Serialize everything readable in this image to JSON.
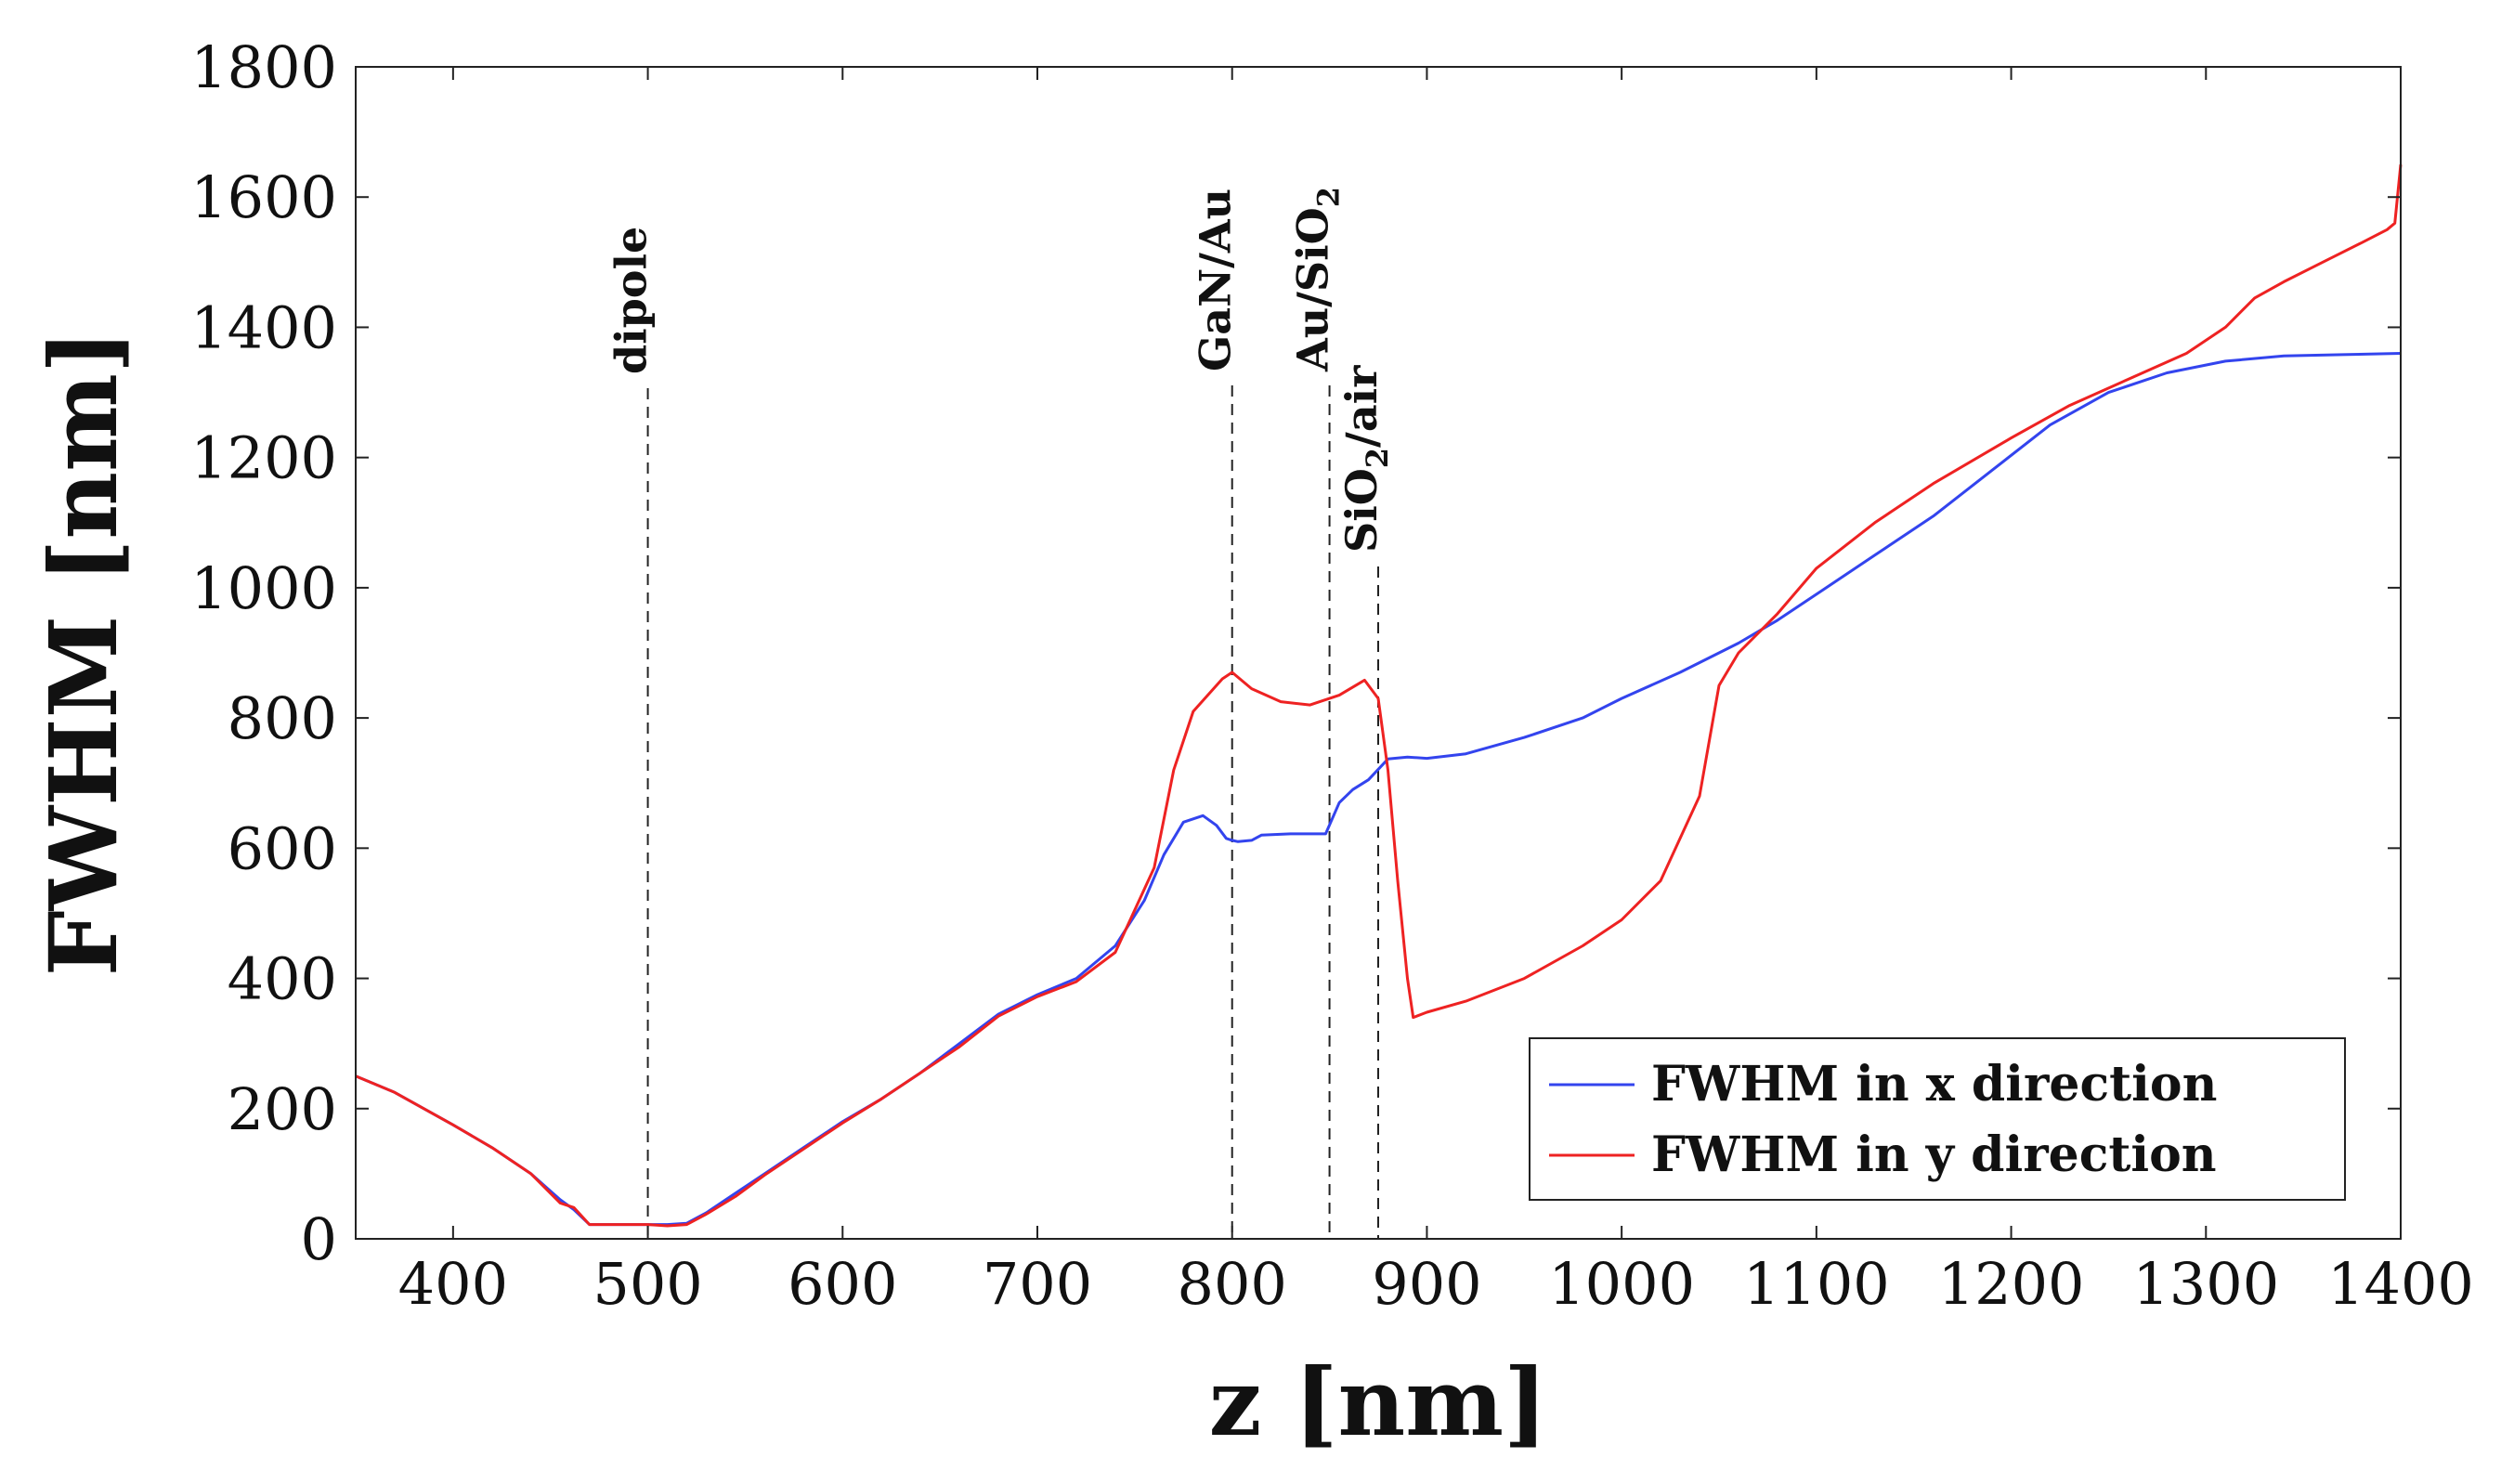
{
  "chart_data": {
    "type": "line",
    "title": "",
    "xlabel": "z [nm]",
    "ylabel": "FWHM [nm]",
    "xlim": [
      350,
      1400
    ],
    "ylim": [
      0,
      1800
    ],
    "grid": false,
    "legend_position": "bottom-right",
    "x_ticks": [
      "400",
      "500",
      "600",
      "700",
      "800",
      "900",
      "1000",
      "1100",
      "1200",
      "1300",
      "1400"
    ],
    "y_ticks": [
      "0",
      "200",
      "400",
      "600",
      "800",
      "1000",
      "1200",
      "1400",
      "1600",
      "1800"
    ],
    "annotations": [
      {
        "x": 500,
        "label": "dipole"
      },
      {
        "x": 800,
        "label": "GaN/Au"
      },
      {
        "x": 850,
        "label": "Au/SiO",
        "subscript": "2"
      },
      {
        "x": 875,
        "label": "SiO",
        "subscript": "2",
        "suffix": "/air"
      }
    ],
    "series": [
      {
        "name": "FWHM in x direction",
        "color": "#3344ee",
        "points": [
          [
            350,
            250
          ],
          [
            370,
            225
          ],
          [
            400,
            175
          ],
          [
            420,
            140
          ],
          [
            440,
            100
          ],
          [
            455,
            60
          ],
          [
            462,
            45
          ],
          [
            470,
            22
          ],
          [
            480,
            22
          ],
          [
            500,
            22
          ],
          [
            510,
            22
          ],
          [
            520,
            24
          ],
          [
            530,
            40
          ],
          [
            545,
            70
          ],
          [
            560,
            100
          ],
          [
            580,
            140
          ],
          [
            600,
            180
          ],
          [
            620,
            215
          ],
          [
            640,
            255
          ],
          [
            660,
            300
          ],
          [
            680,
            345
          ],
          [
            700,
            375
          ],
          [
            720,
            400
          ],
          [
            740,
            450
          ],
          [
            755,
            520
          ],
          [
            765,
            590
          ],
          [
            775,
            640
          ],
          [
            785,
            650
          ],
          [
            792,
            635
          ],
          [
            797,
            615
          ],
          [
            800,
            612
          ],
          [
            803,
            610
          ],
          [
            810,
            612
          ],
          [
            815,
            620
          ],
          [
            830,
            622
          ],
          [
            848,
            622
          ],
          [
            855,
            670
          ],
          [
            862,
            690
          ],
          [
            870,
            705
          ],
          [
            880,
            737
          ],
          [
            890,
            740
          ],
          [
            900,
            738
          ],
          [
            920,
            745
          ],
          [
            950,
            770
          ],
          [
            980,
            800
          ],
          [
            1000,
            830
          ],
          [
            1030,
            870
          ],
          [
            1060,
            915
          ],
          [
            1080,
            950
          ],
          [
            1100,
            990
          ],
          [
            1130,
            1050
          ],
          [
            1160,
            1110
          ],
          [
            1190,
            1180
          ],
          [
            1220,
            1250
          ],
          [
            1250,
            1300
          ],
          [
            1280,
            1330
          ],
          [
            1310,
            1348
          ],
          [
            1340,
            1356
          ],
          [
            1370,
            1358
          ],
          [
            1400,
            1360
          ]
        ]
      },
      {
        "name": "FWHM in y direction",
        "color": "#ee2222",
        "points": [
          [
            350,
            250
          ],
          [
            370,
            225
          ],
          [
            400,
            175
          ],
          [
            420,
            140
          ],
          [
            440,
            100
          ],
          [
            455,
            55
          ],
          [
            462,
            48
          ],
          [
            470,
            22
          ],
          [
            490,
            22
          ],
          [
            500,
            22
          ],
          [
            510,
            20
          ],
          [
            520,
            22
          ],
          [
            530,
            38
          ],
          [
            545,
            65
          ],
          [
            560,
            98
          ],
          [
            580,
            138
          ],
          [
            600,
            178
          ],
          [
            620,
            215
          ],
          [
            640,
            255
          ],
          [
            660,
            295
          ],
          [
            680,
            342
          ],
          [
            700,
            372
          ],
          [
            720,
            395
          ],
          [
            740,
            440
          ],
          [
            760,
            570
          ],
          [
            770,
            720
          ],
          [
            780,
            810
          ],
          [
            795,
            860
          ],
          [
            800,
            870
          ],
          [
            810,
            845
          ],
          [
            825,
            825
          ],
          [
            840,
            820
          ],
          [
            855,
            835
          ],
          [
            868,
            858
          ],
          [
            875,
            830
          ],
          [
            880,
            720
          ],
          [
            885,
            550
          ],
          [
            890,
            400
          ],
          [
            893,
            340
          ],
          [
            900,
            348
          ],
          [
            920,
            365
          ],
          [
            950,
            400
          ],
          [
            980,
            450
          ],
          [
            1000,
            490
          ],
          [
            1020,
            550
          ],
          [
            1040,
            680
          ],
          [
            1050,
            850
          ],
          [
            1060,
            900
          ],
          [
            1080,
            960
          ],
          [
            1100,
            1030
          ],
          [
            1130,
            1100
          ],
          [
            1160,
            1160
          ],
          [
            1200,
            1230
          ],
          [
            1230,
            1280
          ],
          [
            1260,
            1320
          ],
          [
            1290,
            1360
          ],
          [
            1310,
            1400
          ],
          [
            1325,
            1445
          ],
          [
            1340,
            1470
          ],
          [
            1360,
            1500
          ],
          [
            1380,
            1530
          ],
          [
            1393,
            1550
          ],
          [
            1397,
            1560
          ],
          [
            1400,
            1650
          ]
        ]
      }
    ]
  }
}
